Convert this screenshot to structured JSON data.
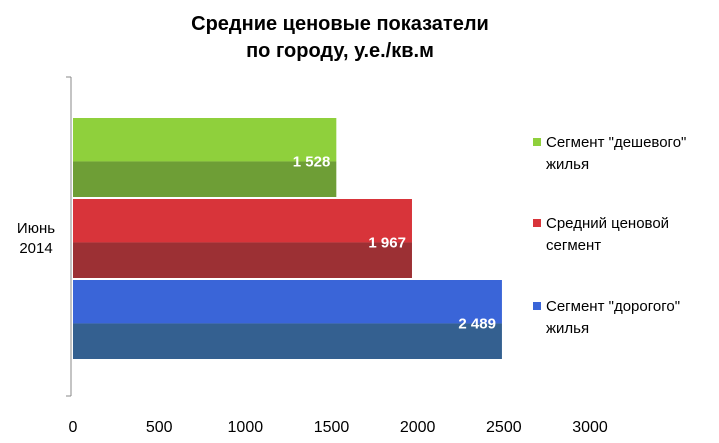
{
  "chart_data": {
    "type": "bar",
    "orientation": "horizontal",
    "title_lines": [
      "Средние ценовые показатели",
      "по городу, у.е./кв.м"
    ],
    "categories": [
      [
        "Июнь",
        "2014"
      ]
    ],
    "xlim": [
      0,
      3000
    ],
    "xticks": [
      0,
      500,
      1000,
      1500,
      2000,
      2500,
      3000
    ],
    "grid": false,
    "legend_position": "right",
    "series": [
      {
        "name_lines": [
          "Сегмент \"дешевого\"",
          "жилья"
        ],
        "values": [
          1528
        ],
        "label": "1 528",
        "color": "#8fd03c",
        "shade_color": "#6e9e36"
      },
      {
        "name_lines": [
          "Средний ценовой",
          "сегмент"
        ],
        "values": [
          1967
        ],
        "label": "1 967",
        "color": "#d8343a",
        "shade_color": "#9c3034"
      },
      {
        "name_lines": [
          "Сегмент \"дорогого\"",
          "жилья"
        ],
        "values": [
          2489
        ],
        "label": "2 489",
        "color": "#3a65d8",
        "shade_color": "#346090"
      }
    ]
  }
}
